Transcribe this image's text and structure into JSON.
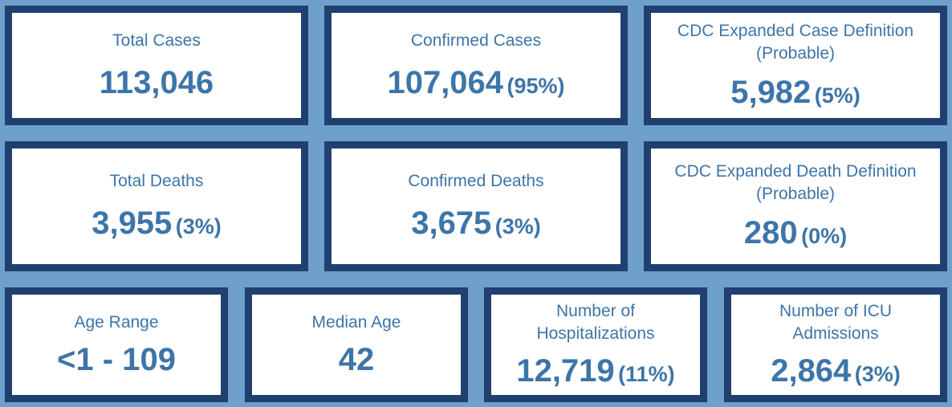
{
  "row1": [
    {
      "label": "Total Cases",
      "value": "113,046",
      "pct": ""
    },
    {
      "label": "Confirmed Cases",
      "value": "107,064",
      "pct": "(95%)"
    },
    {
      "label": "CDC Expanded Case Definition (Probable)",
      "value": "5,982",
      "pct": "(5%)"
    }
  ],
  "row2": [
    {
      "label": "Total Deaths",
      "value": "3,955",
      "pct": "(3%)"
    },
    {
      "label": "Confirmed Deaths",
      "value": "3,675",
      "pct": "(3%)"
    },
    {
      "label": "CDC Expanded Death Definition (Probable)",
      "value": "280",
      "pct": "(0%)"
    }
  ],
  "row3": [
    {
      "label": "Age Range",
      "value": "<1 - 109",
      "pct": ""
    },
    {
      "label": "Median Age",
      "value": "42",
      "pct": ""
    },
    {
      "label": "Number of Hospitalizations",
      "value": "12,719",
      "pct": "(11%)"
    },
    {
      "label": "Number of ICU Admissions",
      "value": "2,864",
      "pct": "(3%)"
    }
  ],
  "colors": {
    "background": "#6f9fcb",
    "border": "#1f4070",
    "text": "#3d75a8"
  }
}
